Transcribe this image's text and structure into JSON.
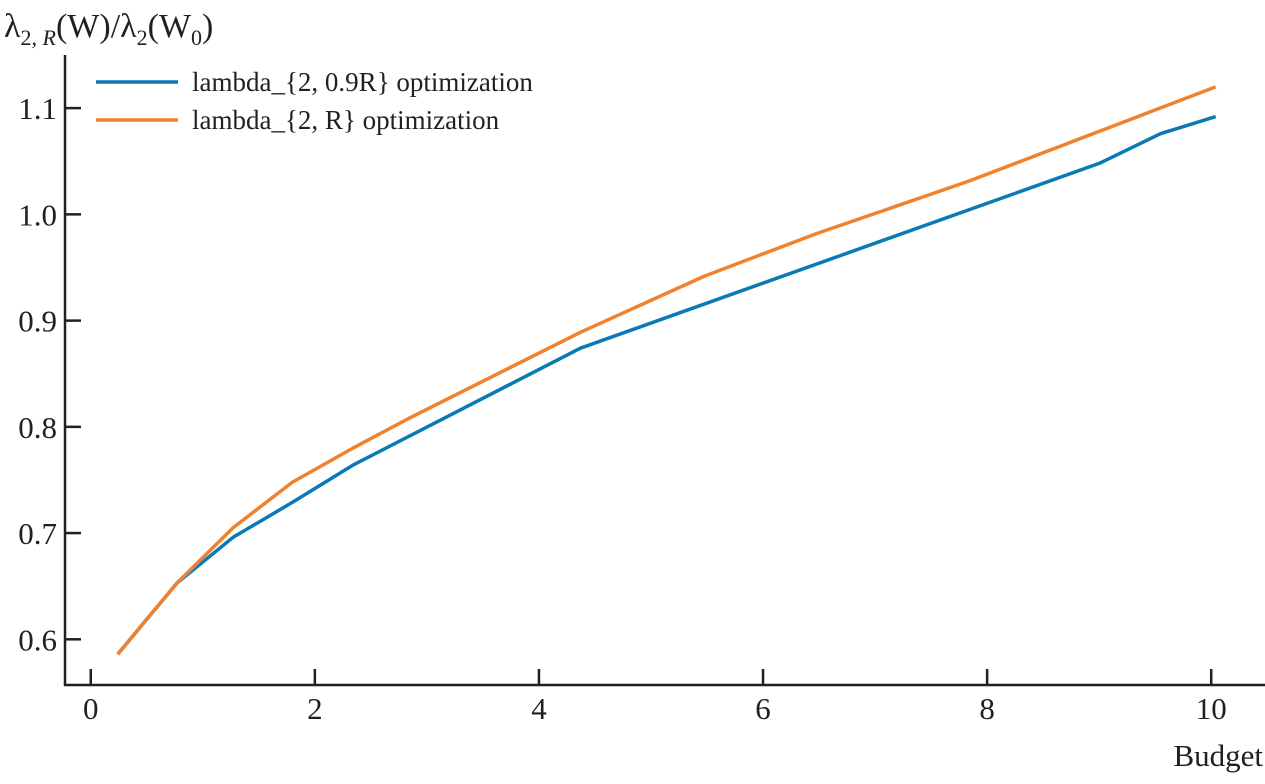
{
  "chart_data": {
    "type": "line",
    "title": "",
    "xlabel": "Budget",
    "ylabel": {
      "lambda": "λ",
      "sub1": "2, ",
      "sub1_italic": "R",
      "mid": "(W)/λ",
      "sub2": "2",
      "mid2": "(W",
      "sub3": "0",
      "end": ")"
    },
    "xlim": [
      -0.23,
      10.48
    ],
    "ylim": [
      0.557,
      1.15
    ],
    "xticks": [
      0,
      2,
      4,
      6,
      8,
      10
    ],
    "yticks": [
      0.6,
      0.7,
      0.8,
      0.9,
      1.0,
      1.1
    ],
    "ytick_labels": [
      "0.6",
      "0.7",
      "0.8",
      "0.9",
      "1.0",
      "1.1"
    ],
    "grid": false,
    "legend_position": "top-left",
    "series": [
      {
        "name": "lambda_{2, 0.9R} optimization",
        "color": "#0a7ab5",
        "x": [
          0.24,
          0.77,
          1.27,
          1.8,
          2.34,
          4.37,
          9.0,
          9.55,
          10.04
        ],
        "y": [
          0.586,
          0.653,
          0.696,
          0.729,
          0.764,
          0.874,
          1.048,
          1.076,
          1.092
        ]
      },
      {
        "name": "lambda_{2, R} optimization",
        "color": "#f0822e",
        "x": [
          0.24,
          0.77,
          1.27,
          1.8,
          2.34,
          2.84,
          4.37,
          5.48,
          6.48,
          7.83,
          10.04
        ],
        "y": [
          0.586,
          0.653,
          0.705,
          0.748,
          0.78,
          0.808,
          0.889,
          0.942,
          0.982,
          1.031,
          1.12
        ]
      }
    ]
  }
}
